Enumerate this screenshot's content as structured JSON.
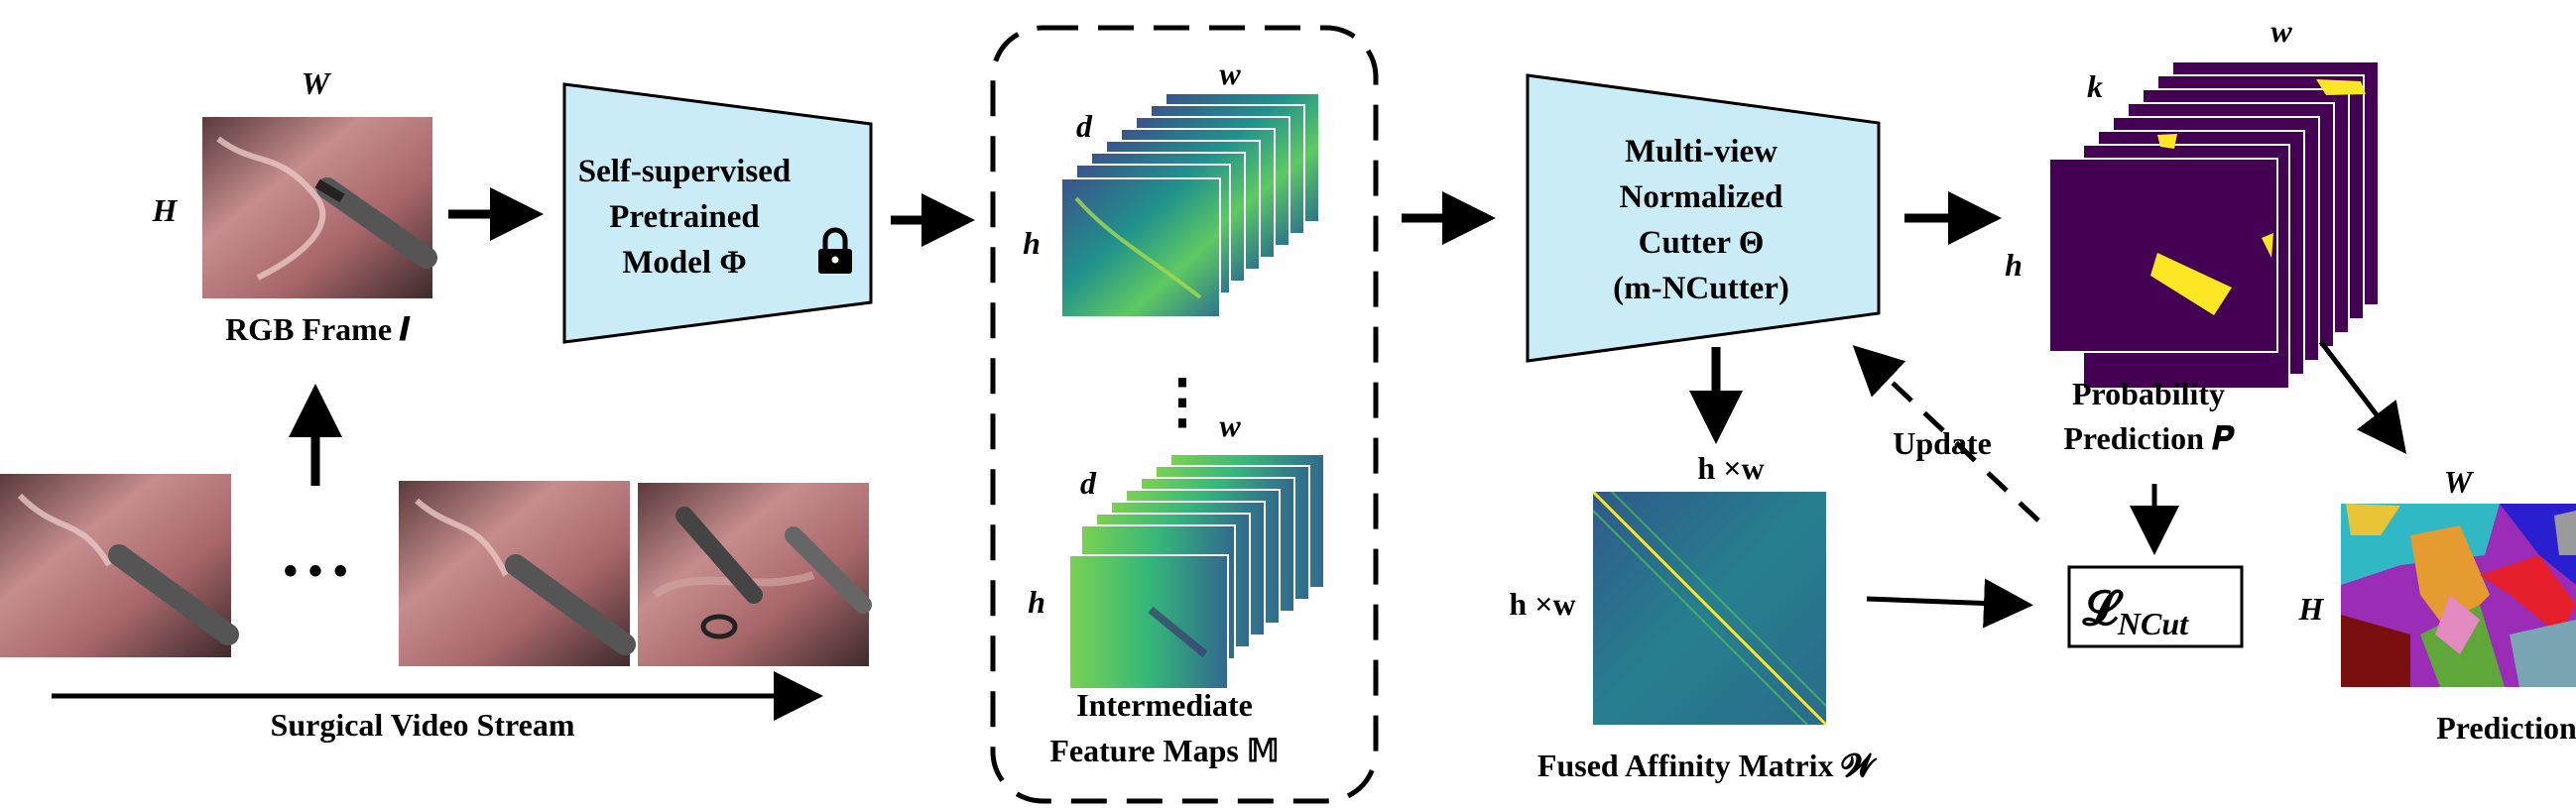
{
  "diagram": {
    "rgb_frame": {
      "caption": "RGB Frame 𝑰",
      "width_label": "W",
      "height_label": "H"
    },
    "video_stream": {
      "caption": "Surgical Video Stream",
      "ellipsis": "• • •"
    },
    "pretrained_model": {
      "line1": "Self-supervised",
      "line2": "Pretrained",
      "line3": "Model Φ",
      "lock_icon": "lock-icon"
    },
    "feature_maps": {
      "caption_line1": "Intermediate",
      "caption_line2": "Feature Maps 𝕄",
      "stack_top": {
        "d": "d",
        "w": "w",
        "h": "h"
      },
      "stack_bottom": {
        "d": "d",
        "w": "w",
        "h": "h"
      },
      "vertical_ellipsis": "⋮"
    },
    "cutter": {
      "line1": "Multi-view",
      "line2": "Normalized",
      "line3": "Cutter Θ",
      "line4": "(m-NCutter)"
    },
    "affinity": {
      "caption": "Fused Affinity Matrix 𝓦",
      "top_label": "h ×w",
      "left_label": "h ×w"
    },
    "update_label": "Update",
    "probability": {
      "caption_line1": "Probability",
      "caption_line2": "Prediction 𝑷",
      "k": "k",
      "w": "w",
      "h": "h"
    },
    "loss": {
      "label": "𝓛",
      "subscript": "NCut"
    },
    "prediction": {
      "caption": "Prediction",
      "w": "W",
      "h": "H"
    },
    "colors": {
      "box_fill": "#c9ecf7",
      "purple": "#440154",
      "yellow": "#fde725",
      "teal": "#21918c",
      "green": "#5ec962"
    }
  }
}
